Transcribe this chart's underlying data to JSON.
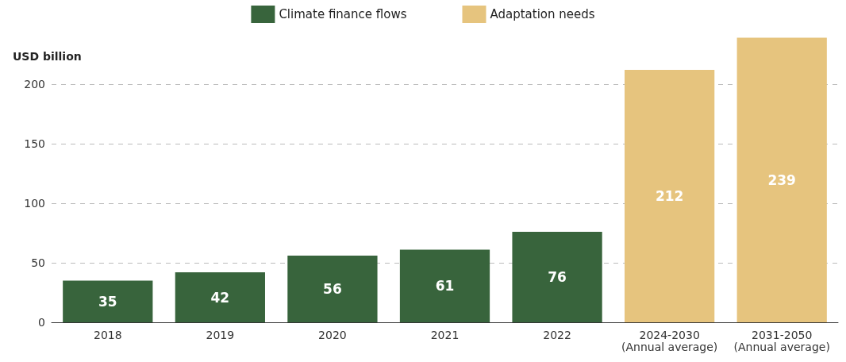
{
  "chart_data": {
    "type": "bar",
    "ylabel": "USD billion",
    "categories": [
      "2018",
      "2019",
      "2020",
      "2021",
      "2022",
      "2024-2030\n(Annual average)",
      "2031-2050\n(Annual average)"
    ],
    "series": [
      {
        "name": "Climate finance flows",
        "color": "#38643c",
        "values": [
          35,
          42,
          56,
          61,
          76,
          null,
          null
        ]
      },
      {
        "name": "Adaptation needs",
        "color": "#e6c47e",
        "values": [
          null,
          null,
          null,
          null,
          null,
          212,
          239
        ]
      }
    ],
    "ylim": [
      0,
      240
    ],
    "yticks": [
      0,
      50,
      100,
      150,
      200
    ],
    "grid": "y",
    "legend": "top",
    "data_labels": true
  }
}
